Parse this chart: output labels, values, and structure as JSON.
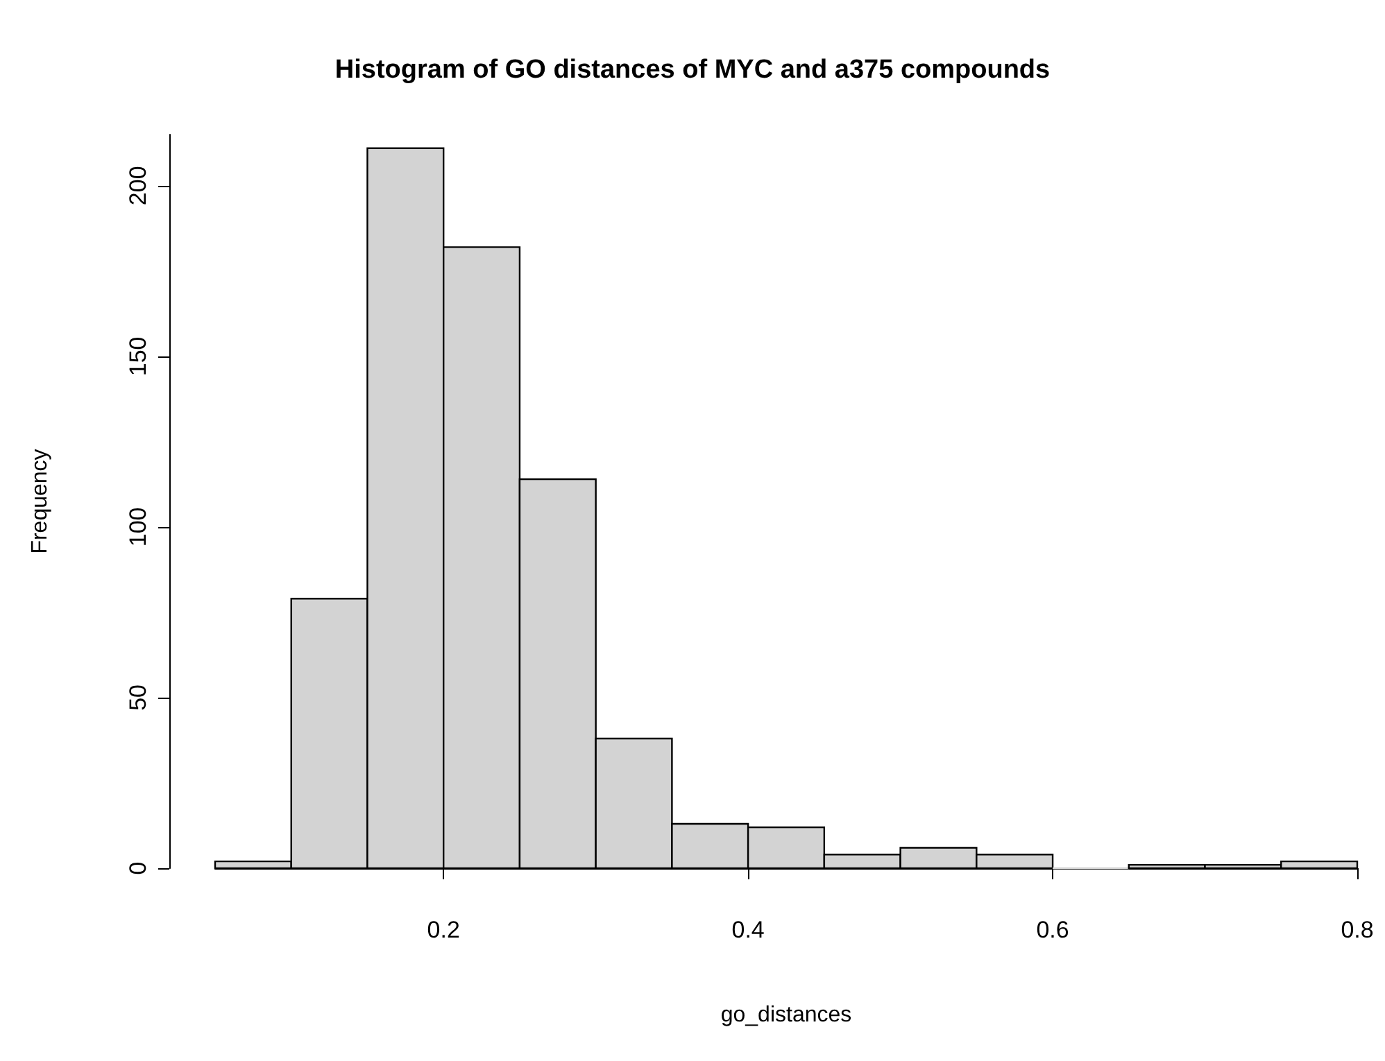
{
  "chart_data": {
    "type": "histogram",
    "title": "Histogram of GO distances of MYC and a375 compounds",
    "xlabel": "go_distances",
    "ylabel": "Frequency",
    "bins": [
      0.05,
      0.1,
      0.15,
      0.2,
      0.25,
      0.3,
      0.35,
      0.4,
      0.45,
      0.5,
      0.55,
      0.6,
      0.65,
      0.7,
      0.75,
      0.8
    ],
    "values": [
      2,
      79,
      211,
      182,
      114,
      38,
      13,
      12,
      4,
      6,
      4,
      0,
      1,
      1,
      2
    ],
    "color": "#d3d3d3",
    "xlim": [
      0.05,
      0.8
    ],
    "xticks": [
      0.2,
      0.4,
      0.6,
      0.8
    ],
    "ylim": [
      0,
      215
    ],
    "yticks": [
      0,
      50,
      100,
      150,
      200
    ],
    "grid": false
  }
}
